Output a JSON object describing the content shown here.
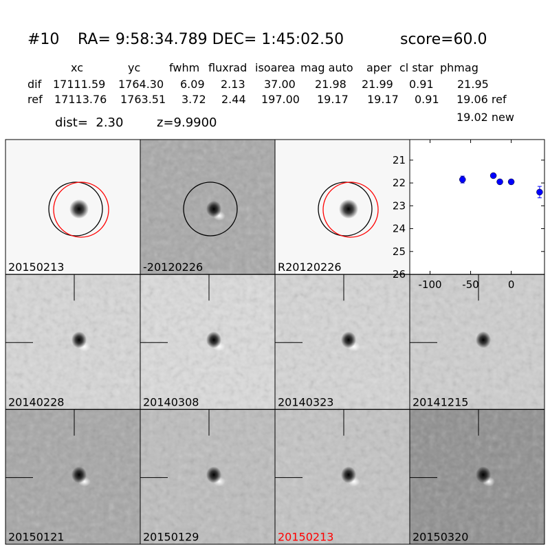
{
  "header": {
    "id": "#10",
    "coords": "RA= 9:58:34.789 DEC= 1:45:02.50",
    "score": "score=60.0"
  },
  "table": {
    "columns": [
      "xc",
      "yc",
      "fwhm",
      "fluxrad",
      "isoarea",
      "mag auto",
      "aper",
      "cl star",
      "phmag"
    ],
    "rows": [
      {
        "label": "dif",
        "cells": [
          "17111.59",
          "1764.30",
          "6.09",
          "2.13",
          "37.00",
          "21.98",
          "21.99",
          "0.91",
          "21.95"
        ]
      },
      {
        "label": "ref",
        "cells": [
          "17113.76",
          "1763.51",
          "3.72",
          "2.44",
          "197.00",
          "19.17",
          "19.17",
          "0.91",
          "19.06 ref"
        ]
      }
    ],
    "extra": "19.02 new"
  },
  "dist": "dist=  2.30",
  "z": "z=9.9900",
  "panels": [
    {
      "label": "20150213"
    },
    {
      "label": "-20120226"
    },
    {
      "label": "R20120226"
    },
    {
      "label": "20140228"
    },
    {
      "label": "20140308"
    },
    {
      "label": "20140323"
    },
    {
      "label": "20141215"
    },
    {
      "label": "20150121"
    },
    {
      "label": "20150129"
    },
    {
      "label": "20150213",
      "label_color": "#ff0000"
    },
    {
      "label": "20150320"
    }
  ],
  "chart_data": {
    "type": "scatter",
    "x": [
      -60,
      -22,
      -14,
      0,
      35
    ],
    "values": [
      21.85,
      21.68,
      21.95,
      21.95,
      22.4
    ],
    "errors": [
      0.15,
      0.08,
      0.08,
      0.1,
      0.25
    ],
    "color": "#0000ff",
    "xlim": [
      -125,
      41
    ],
    "ylim": [
      26,
      20.1
    ],
    "xticks": [
      -100,
      -50,
      0
    ],
    "yticks": [
      21,
      22,
      23,
      24,
      25,
      26
    ]
  }
}
